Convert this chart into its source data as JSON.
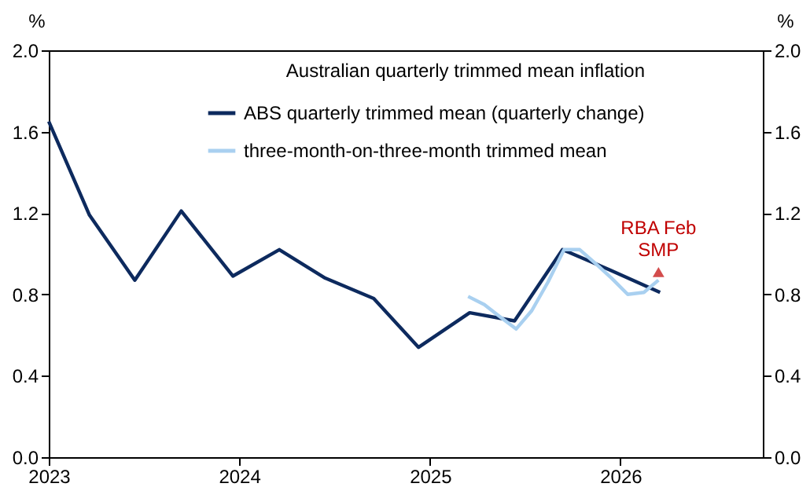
{
  "chart_data": {
    "type": "line",
    "legend_title": "Australian quarterly trimmed mean inflation",
    "ylabel": "%",
    "y2label": "%",
    "xlim": [
      "2023-01-01",
      "2026-10-01"
    ],
    "xticks": [
      "2023",
      "2024",
      "2025",
      "2026"
    ],
    "ylim": [
      0,
      2.0
    ],
    "yticks": [
      {
        "value": 0,
        "label": "0.0"
      },
      0.4,
      0.8,
      1.2,
      1.6,
      {
        "value": 2,
        "label": "2.0"
      }
    ],
    "y2lim": [
      0,
      2.0
    ],
    "y2ticks": [
      {
        "value": 0,
        "label": "0.0"
      },
      0.4,
      0.8,
      1.2,
      1.6,
      {
        "value": 2,
        "label": "2.0"
      }
    ],
    "grid": false,
    "legend": "top",
    "line_style": "solid",
    "marker": "none",
    "series": [
      {
        "name": "ABS quarterly trimmed mean (quarterly change)",
        "color": "#0d2a5e",
        "x": [
          "2023-01-01",
          "2023-03-20",
          "2023-06-15",
          "2023-09-12",
          "2023-12-20",
          "2024-03-18",
          "2024-06-14",
          "2024-09-15",
          "2024-12-10",
          "2025-03-18",
          "2025-06-12",
          "2025-09-12",
          "2025-12-12",
          "2026-03-18"
        ],
        "values": [
          1.65,
          1.19,
          0.87,
          1.21,
          0.89,
          1.02,
          0.88,
          0.78,
          0.54,
          0.71,
          0.67,
          1.02,
          0.92,
          0.81
        ]
      },
      {
        "name": "three-month-on-three-month trimmed mean",
        "color": "#a9d0f0",
        "x": [
          "2025-03-15",
          "2025-04-15",
          "2025-05-15",
          "2025-06-15",
          "2025-07-15",
          "2025-08-15",
          "2025-09-15",
          "2025-10-15",
          "2025-11-15",
          "2025-12-15",
          "2026-01-15",
          "2026-02-15",
          "2026-03-15"
        ],
        "values": [
          0.79,
          0.75,
          0.69,
          0.63,
          0.72,
          0.86,
          1.02,
          1.02,
          0.95,
          0.88,
          0.8,
          0.81,
          0.87
        ]
      },
      {
        "name": "RBA Feb SMP",
        "type": "scatter",
        "marker": "triangle",
        "color": "#c00000",
        "x": [
          "2026-03-15"
        ],
        "values": [
          0.91
        ]
      }
    ]
  }
}
